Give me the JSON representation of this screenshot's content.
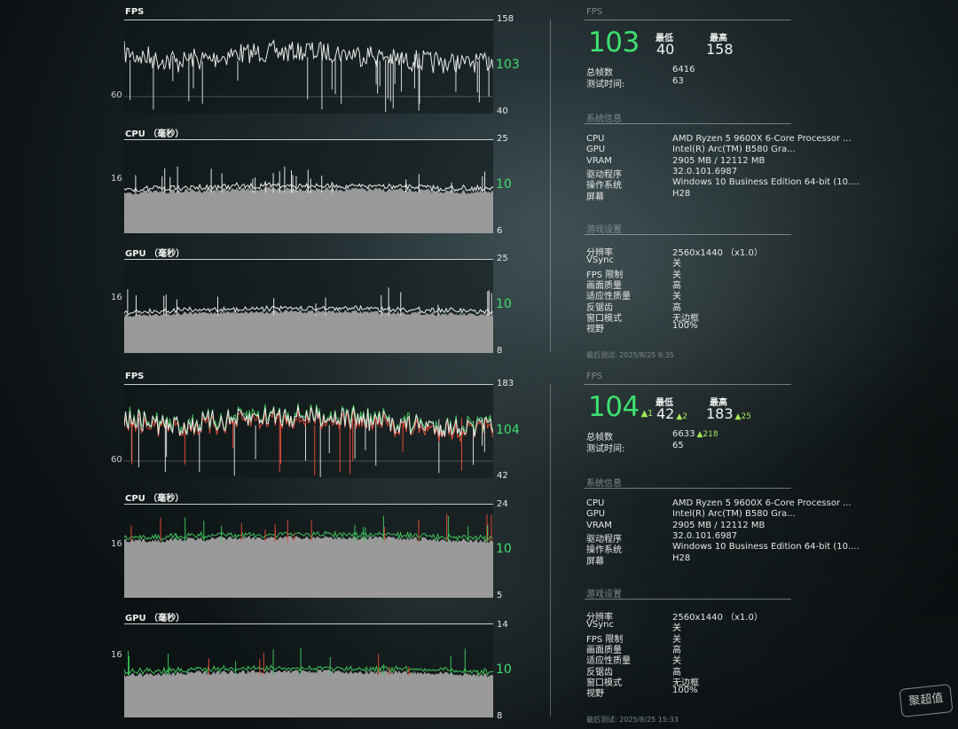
{
  "sessions": [
    {
      "mode": "mono",
      "fps": {
        "title": "FPS",
        "top": "158",
        "bottom": "40",
        "mid": "60",
        "current": "103",
        "avg": 0.44,
        "spread": 0.18
      },
      "cpu": {
        "title": "CPU （毫秒）",
        "top": "25",
        "bottom": "6",
        "mid": "16",
        "current": "10",
        "avg": 0.57,
        "spread": 0.05
      },
      "gpu": {
        "title": "GPU （毫秒）",
        "top": "25",
        "bottom": "8",
        "mid": "16",
        "current": "10",
        "avg": 0.6,
        "spread": 0.04
      },
      "stats": {
        "fps_label": "FPS",
        "fps_value": "103",
        "min_label": "最低",
        "min_value": "40",
        "min_delta": "",
        "max_label": "最高",
        "max_value": "158",
        "max_delta": "",
        "fps_delta": "",
        "frames_label": "总帧数",
        "frames_value": "6416",
        "frames_delta": "",
        "time_label": "测试时间:",
        "time_value": "63"
      },
      "sysinfo": {
        "title": "系统信息",
        "rows": [
          {
            "label": "CPU",
            "value": "AMD Ryzen 5 9600X 6-Core Processor"
          },
          {
            "label": "GPU",
            "value": "Intel(R) Arc(TM) B580 Gra..."
          },
          {
            "label": "VRAM",
            "value": "2905 MB / 12112 MB"
          },
          {
            "label": "驱动程序",
            "value": "32.0.101.6987"
          },
          {
            "label": "操作系统",
            "value": "Windows 10 Business Edition 64-bit (10...."
          },
          {
            "label": "屏幕",
            "value": "H28"
          }
        ],
        "ellipsis": "..."
      },
      "settings": {
        "title": "游戏设置",
        "rows": [
          {
            "label": "分辨率",
            "value": "2560x1440 （x1.0）"
          },
          {
            "label": "VSync",
            "value": "关"
          },
          {
            "label": "FPS 限制",
            "value": "关"
          },
          {
            "label": "画面质量",
            "value": "高"
          },
          {
            "label": "适应性质量",
            "value": "关"
          },
          {
            "label": "反锯齿",
            "value": "高"
          },
          {
            "label": "窗口模式",
            "value": "无边框"
          },
          {
            "label": "视野",
            "value": "100%"
          }
        ]
      },
      "footer": "最后测试:  2025/8/25 9:35"
    },
    {
      "mode": "compare",
      "fps": {
        "title": "FPS",
        "top": "183",
        "bottom": "42",
        "mid": "60",
        "current": "104",
        "avg": 0.44,
        "spread": 0.18
      },
      "cpu": {
        "title": "CPU （毫秒）",
        "top": "24",
        "bottom": "5",
        "mid": "16",
        "current": "10",
        "avg": 0.4,
        "spread": 0.05
      },
      "gpu": {
        "title": "GPU （毫秒）",
        "top": "14",
        "bottom": "8",
        "mid": "16",
        "current": "10",
        "avg": 0.55,
        "spread": 0.05
      },
      "stats": {
        "fps_label": "FPS",
        "fps_value": "104",
        "fps_delta": "▲1",
        "min_label": "最低",
        "min_value": "42",
        "min_delta": "▲2",
        "max_label": "最高",
        "max_value": "183",
        "max_delta": "▲25",
        "frames_label": "总帧数",
        "frames_value": "6633",
        "frames_delta": "▲218",
        "time_label": "测试时间:",
        "time_value": "65"
      },
      "sysinfo": {
        "title": "系统信息",
        "rows": [
          {
            "label": "CPU",
            "value": "AMD Ryzen 5 9600X 6-Core Processor"
          },
          {
            "label": "GPU",
            "value": "Intel(R) Arc(TM) B580 Gra..."
          },
          {
            "label": "VRAM",
            "value": "2905 MB / 12112 MB"
          },
          {
            "label": "驱动程序",
            "value": "32.0.101.6987"
          },
          {
            "label": "操作系统",
            "value": "Windows 10 Business Edition 64-bit (10...."
          },
          {
            "label": "屏幕",
            "value": "H28"
          }
        ],
        "ellipsis": "..."
      },
      "settings": {
        "title": "游戏设置",
        "rows": [
          {
            "label": "分辨率",
            "value": "2560x1440 （x1.0）"
          },
          {
            "label": "VSync",
            "value": "关"
          },
          {
            "label": "FPS 限制",
            "value": "关"
          },
          {
            "label": "画面质量",
            "value": "高"
          },
          {
            "label": "适应性质量",
            "value": "关"
          },
          {
            "label": "反锯齿",
            "value": "高"
          },
          {
            "label": "窗口模式",
            "value": "无边框"
          },
          {
            "label": "视野",
            "value": "100%"
          }
        ]
      },
      "footer": "最后测试:  2025/8/25 15:33"
    }
  ],
  "watermark": "聚超值",
  "colors": {
    "accent_green": "#3ee06f",
    "delta_green": "#a6e85a",
    "trace_white": "#e8e8e8",
    "trace_red": "#e04a33",
    "fill_gray": "#9a9a9a"
  }
}
